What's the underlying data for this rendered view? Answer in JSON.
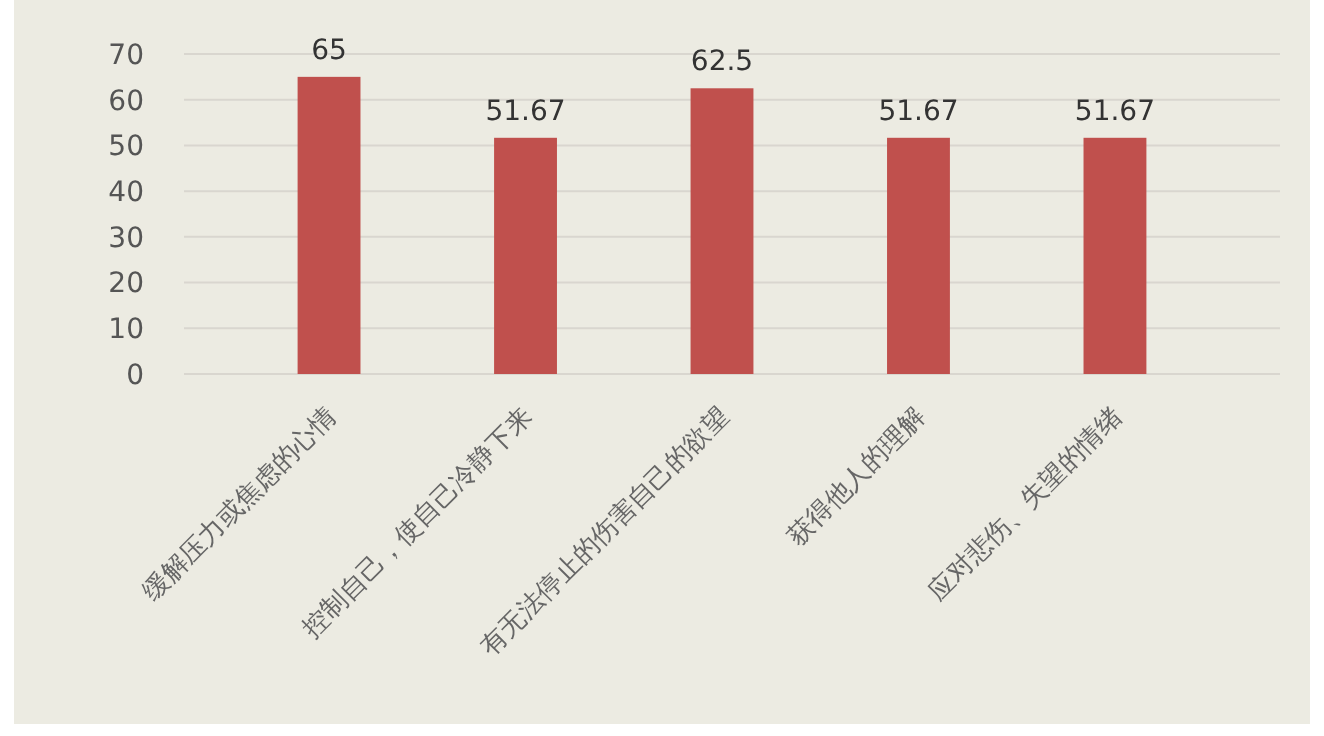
{
  "chart_data": {
    "type": "bar",
    "categories": [
      "缓解压力或焦虑的心情",
      "控制自己，使自己冷静下来",
      "有无法停止的伤害自己的欲望",
      "获得他人的理解",
      "应对悲伤、失望的情绪"
    ],
    "values": [
      65,
      51.67,
      62.5,
      51.67,
      51.67
    ],
    "color": "#c0504d",
    "ylim": [
      0,
      70
    ],
    "yticks": [
      0,
      10,
      20,
      30,
      40,
      50,
      60,
      70
    ],
    "grid": "y",
    "data_labels": true
  }
}
